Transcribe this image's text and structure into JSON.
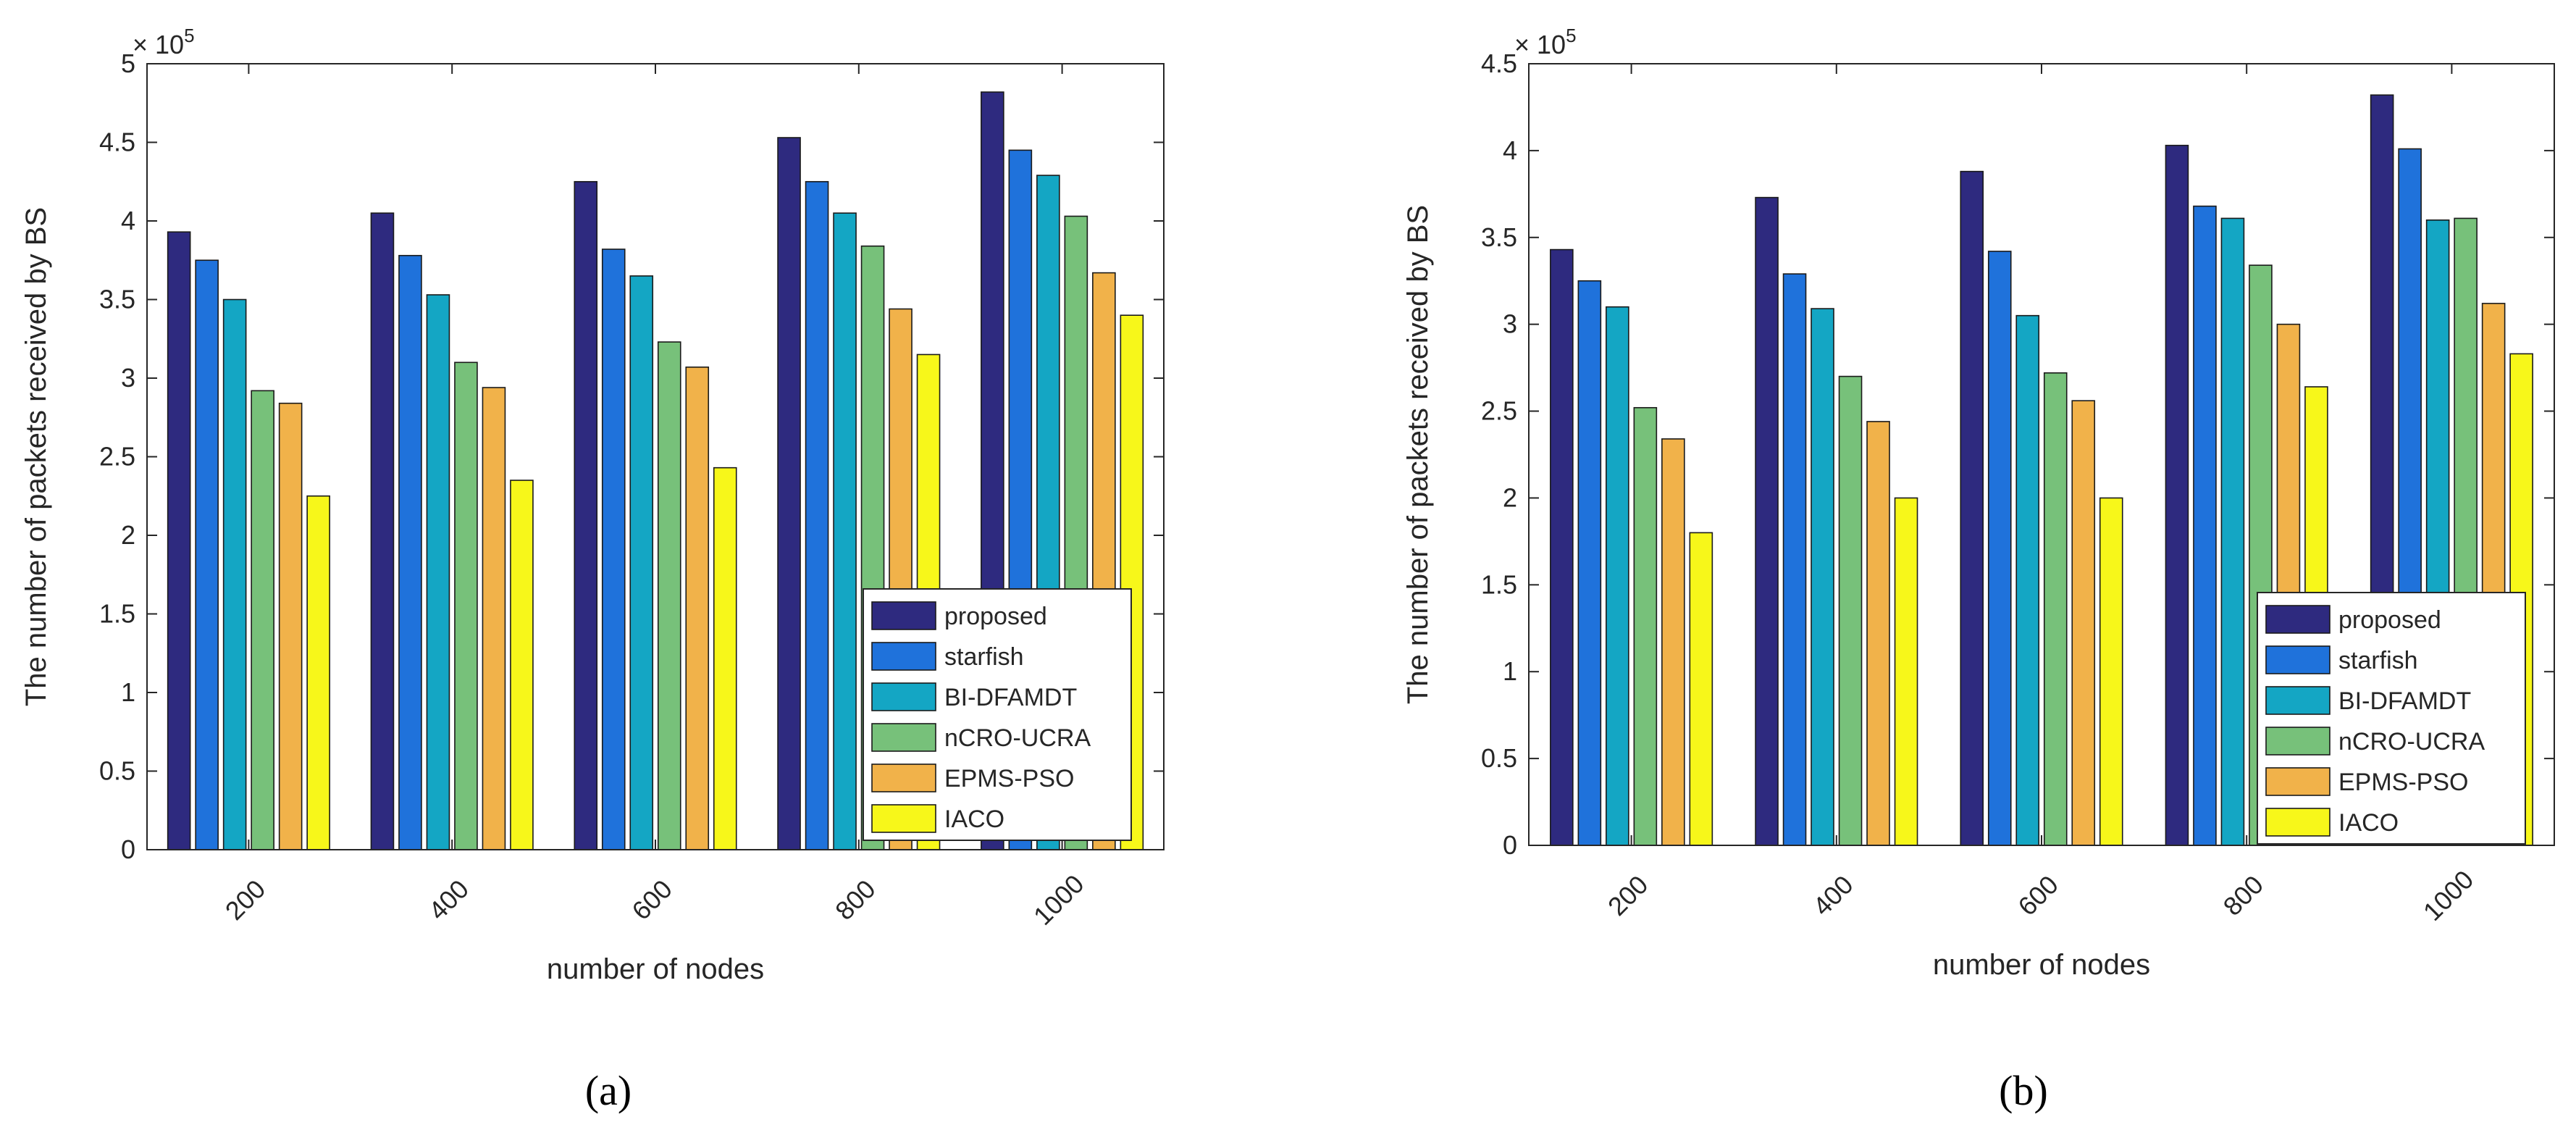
{
  "series_colors": [
    "#2e2a7f",
    "#1f72db",
    "#14a6c4",
    "#77c17a",
    "#f1b24a",
    "#f7f71a"
  ],
  "chart_data": [
    {
      "type": "bar",
      "caption": "(a)",
      "categories": [
        "200",
        "400",
        "600",
        "800",
        "1000"
      ],
      "series": [
        {
          "name": "proposed",
          "values": [
            3.93,
            4.05,
            4.25,
            4.53,
            4.82
          ]
        },
        {
          "name": "starfish",
          "values": [
            3.75,
            3.78,
            3.82,
            4.25,
            4.45
          ]
        },
        {
          "name": "BI-DFAMDT",
          "values": [
            3.5,
            3.53,
            3.65,
            4.05,
            4.29
          ]
        },
        {
          "name": "nCRO-UCRA",
          "values": [
            2.92,
            3.1,
            3.23,
            3.84,
            4.03
          ]
        },
        {
          "name": "EPMS-PSO",
          "values": [
            2.84,
            2.94,
            3.07,
            3.44,
            3.67
          ]
        },
        {
          "name": "IACO",
          "values": [
            2.25,
            2.35,
            2.43,
            3.15,
            3.4
          ]
        }
      ],
      "xlabel": "number of nodes",
      "ylabel": "The number of packets received by BS",
      "ylim": [
        0,
        5
      ],
      "yticks": [
        "0",
        "0.5",
        "1",
        "1.5",
        "2",
        "2.5",
        "3",
        "3.5",
        "4",
        "4.5",
        "5"
      ],
      "multiplier_base": "× 10",
      "multiplier_exp": "5",
      "legend_position": "bottom-right",
      "grid": false
    },
    {
      "type": "bar",
      "caption": "(b)",
      "categories": [
        "200",
        "400",
        "600",
        "800",
        "1000"
      ],
      "series": [
        {
          "name": "proposed",
          "values": [
            3.43,
            3.73,
            3.88,
            4.03,
            4.32
          ]
        },
        {
          "name": "starfish",
          "values": [
            3.25,
            3.29,
            3.42,
            3.68,
            4.01
          ]
        },
        {
          "name": "BI-DFAMDT",
          "values": [
            3.1,
            3.09,
            3.05,
            3.61,
            3.6
          ]
        },
        {
          "name": "nCRO-UCRA",
          "values": [
            2.52,
            2.7,
            2.72,
            3.34,
            3.61
          ]
        },
        {
          "name": "EPMS-PSO",
          "values": [
            2.34,
            2.44,
            2.56,
            3.0,
            3.12
          ]
        },
        {
          "name": "IACO",
          "values": [
            1.8,
            2.0,
            2.0,
            2.64,
            2.83
          ]
        }
      ],
      "xlabel": "number of nodes",
      "ylabel": "The number of packets received by BS",
      "ylim": [
        0,
        4.5
      ],
      "yticks": [
        "0",
        "0.5",
        "1",
        "1.5",
        "2",
        "2.5",
        "3",
        "3.5",
        "4",
        "4.5"
      ],
      "multiplier_base": "× 10",
      "multiplier_exp": "5",
      "legend_position": "bottom-right",
      "grid": false
    }
  ]
}
